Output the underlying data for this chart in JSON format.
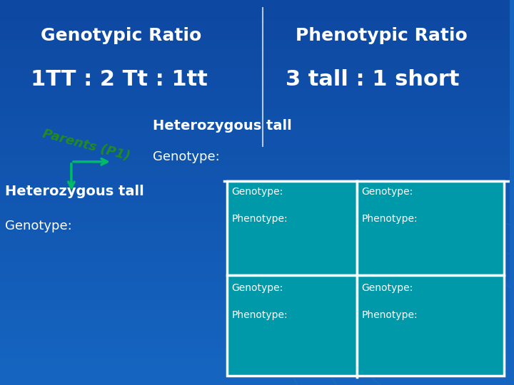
{
  "bg_color_top": "#1565C0",
  "bg_color_bottom": "#0D47A1",
  "bg_gradient_colors": [
    "#1a6fc4",
    "#1565c0",
    "#0d6eaf",
    "#1a7ab5"
  ],
  "title_genotypic": "Genotypic Ratio",
  "title_phenotypic": "Phenotypic Ratio",
  "ratio_genotypic": "1TT : 2 Tt : 1tt",
  "ratio_phenotypic": "3 tall : 1 short",
  "parents_label": "Parents (P1)",
  "heterozygous_top": "Heterozygous tall",
  "genotype_top": "Genotype:",
  "heterozygous_left": "Heterozygous tall",
  "genotype_left": "Genotype:",
  "cell_labels": [
    [
      "Genotype:\n\nPhenotype:",
      "Genotype:\n\nPhenotype:"
    ],
    [
      "Genotype:\n\nPhenotype:",
      "Genotype:\n\nPhenotype:"
    ]
  ],
  "text_color_white": "#FFFFFF",
  "text_color_light": "#E0F0FF",
  "cell_fill_color": "#0099AA",
  "cell_border_color": "#FFFFFF",
  "grid_line_color": "#FFFFFF",
  "parents_text_color": "#1a7a1a",
  "arrow_color": "#00BB66",
  "title_fontsize": 18,
  "subtitle_fontsize": 26,
  "label_fontsize": 14,
  "cell_fontsize": 11
}
